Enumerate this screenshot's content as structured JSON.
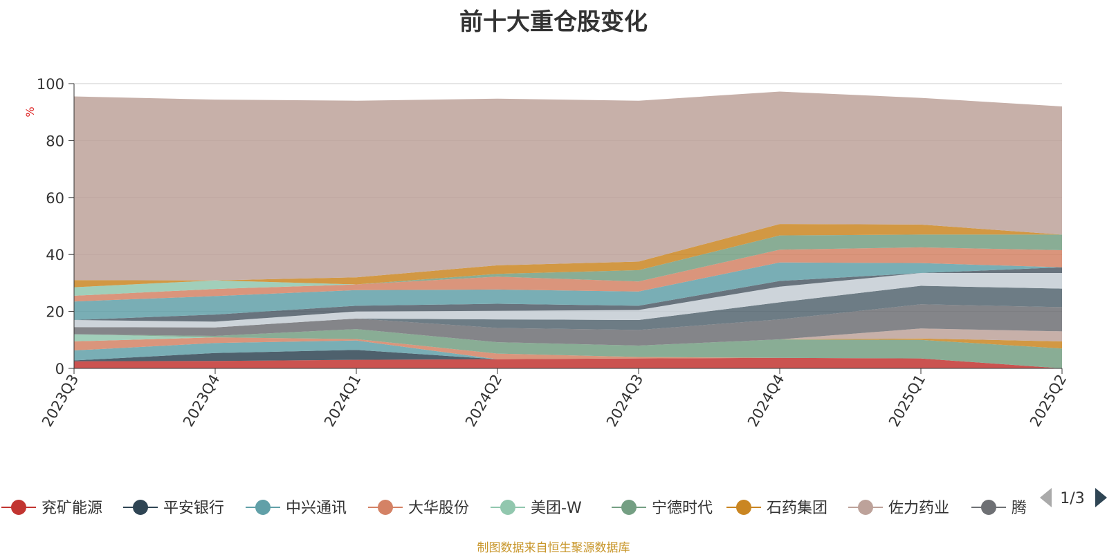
{
  "title": "前十大重仓股变化",
  "source_note": "制图数据来自恒生聚源数据库",
  "legend_page": "1/3",
  "icons": {
    "prev": "triangle-left-icon",
    "next": "triangle-right-icon"
  },
  "chart_data": {
    "type": "area",
    "stacked": true,
    "categories": [
      "2023Q3",
      "2023Q4",
      "2024Q1",
      "2024Q2",
      "2024Q3",
      "2024Q4",
      "2025Q1",
      "2025Q2"
    ],
    "ylabel": "%",
    "ylim": [
      0,
      100
    ],
    "yticks": [
      0,
      20,
      40,
      60,
      80,
      100
    ],
    "grid": true,
    "legend_position": "bottom",
    "series": [
      {
        "name": "兖矿能源",
        "color": "#c23531",
        "values": [
          2.5,
          2.6,
          3.0,
          3.2,
          3.5,
          3.7,
          3.5,
          0
        ]
      },
      {
        "name": "平安银行",
        "color": "#2f4554",
        "values": [
          0.3,
          2.8,
          3.5,
          0,
          0,
          0,
          0,
          0
        ]
      },
      {
        "name": "中兴通讯",
        "color": "#61a0a8",
        "values": [
          3.5,
          3.5,
          3.3,
          0,
          0,
          0,
          0,
          0
        ]
      },
      {
        "name": "大华股份",
        "color": "#d48265",
        "values": [
          3.2,
          2.0,
          0.5,
          2.0,
          0.5,
          0,
          0,
          0
        ]
      },
      {
        "name": "美团-W",
        "color": "#91c7ae",
        "values": [
          2.5,
          0,
          0,
          0,
          0,
          0,
          0,
          0
        ]
      },
      {
        "name": "宁德时代",
        "color": "#749f83",
        "values": [
          0,
          0.5,
          3.5,
          4.0,
          4.0,
          6.5,
          6.5,
          7.0
        ]
      },
      {
        "name": "石药集团",
        "color": "#ca8622",
        "values": [
          0,
          0,
          0,
          0,
          0,
          0,
          0.5,
          2.5
        ]
      },
      {
        "name": "佐力药业",
        "color": "#bda29a",
        "values": [
          0,
          0,
          0,
          0,
          0,
          0,
          3.5,
          3.5
        ]
      },
      {
        "name": "腾",
        "color": "#6e7074",
        "values": [
          2.5,
          3.0,
          3.7,
          5.0,
          5.5,
          7.0,
          8.5,
          8.5
        ]
      }
    ],
    "extra_bands_unlisted": [
      {
        "color": "#546570",
        "values": [
          0,
          0,
          0,
          3.0,
          3.5,
          6.0,
          6.5,
          6.5
        ]
      },
      {
        "color": "#c4ccd3",
        "values": [
          2.5,
          2.0,
          2.5,
          3.0,
          3.5,
          5.5,
          4.5,
          5.5
        ]
      },
      {
        "color": "#4e5b66",
        "values": [
          0,
          2.5,
          2.0,
          2.5,
          1.5,
          2.0,
          0,
          2.0
        ]
      },
      {
        "color": "#61a0a8",
        "values": [
          6.5,
          6.5,
          5.5,
          5.0,
          5.0,
          6.5,
          3.5,
          0
        ]
      },
      {
        "color": "#d48265",
        "values": [
          2.0,
          2.5,
          2.0,
          4.5,
          3.5,
          4.5,
          5.5,
          6.0
        ]
      },
      {
        "color": "#91c7ae",
        "values": [
          3.0,
          3.0,
          0,
          0,
          0,
          0,
          0,
          0
        ]
      },
      {
        "color": "#749f83",
        "values": [
          0,
          0,
          0,
          1.0,
          4.0,
          5.0,
          4.5,
          5.5
        ]
      },
      {
        "color": "#ca8622",
        "values": [
          2.5,
          0,
          2.5,
          3.0,
          3.0,
          4.0,
          3.5,
          0
        ]
      },
      {
        "color": "#bda29a",
        "values": [
          64.5,
          63.5,
          62.0,
          58.5,
          56.5,
          46.5,
          44.5,
          45.0
        ]
      }
    ]
  }
}
